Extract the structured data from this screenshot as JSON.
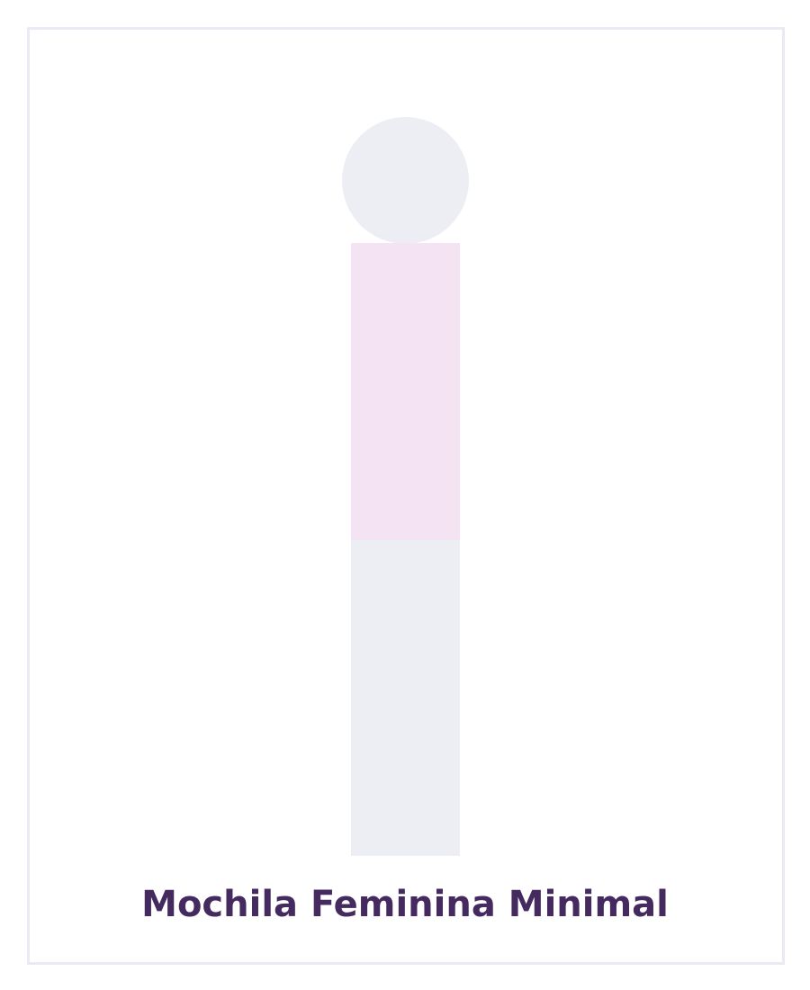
{
  "product": {
    "title": "Mochila Feminina Minimal"
  },
  "colors": {
    "frame_border": "#ebe9f3",
    "head": "#edeef3",
    "torso": "#f4e3f3",
    "legs": "#edeef3",
    "title": "#452a60"
  }
}
